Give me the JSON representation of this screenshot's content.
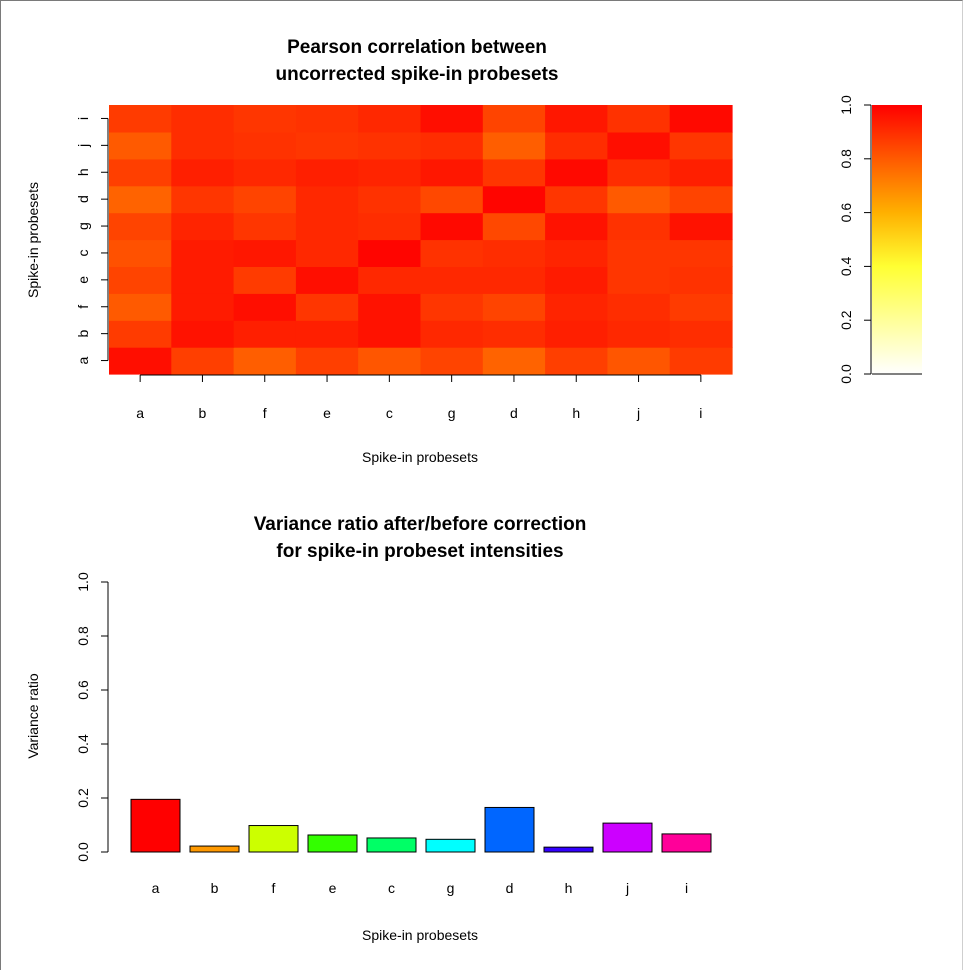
{
  "chart_data": [
    {
      "type": "heatmap",
      "title": [
        "Pearson correlation between",
        "uncorrected spike-in probesets"
      ],
      "xlabel": "Spike-in probesets",
      "ylabel": "Spike-in probesets",
      "x_categories": [
        "a",
        "b",
        "f",
        "e",
        "c",
        "g",
        "d",
        "h",
        "j",
        "i"
      ],
      "y_categories": [
        "a",
        "b",
        "f",
        "e",
        "c",
        "g",
        "d",
        "h",
        "j",
        "i"
      ],
      "values": [
        [
          0.97,
          0.86,
          0.79,
          0.86,
          0.81,
          0.85,
          0.78,
          0.86,
          0.81,
          0.87
        ],
        [
          0.87,
          0.96,
          0.93,
          0.93,
          0.96,
          0.91,
          0.9,
          0.93,
          0.91,
          0.9
        ],
        [
          0.8,
          0.94,
          0.97,
          0.88,
          0.96,
          0.88,
          0.85,
          0.92,
          0.9,
          0.87
        ],
        [
          0.85,
          0.94,
          0.87,
          0.97,
          0.91,
          0.91,
          0.91,
          0.94,
          0.88,
          0.89
        ],
        [
          0.82,
          0.94,
          0.95,
          0.91,
          0.99,
          0.89,
          0.9,
          0.92,
          0.88,
          0.88
        ],
        [
          0.85,
          0.92,
          0.88,
          0.91,
          0.9,
          0.98,
          0.84,
          0.96,
          0.89,
          0.96
        ],
        [
          0.78,
          0.88,
          0.85,
          0.91,
          0.89,
          0.84,
          0.99,
          0.88,
          0.8,
          0.85
        ],
        [
          0.86,
          0.93,
          0.91,
          0.93,
          0.92,
          0.95,
          0.88,
          0.98,
          0.9,
          0.93
        ],
        [
          0.8,
          0.9,
          0.89,
          0.88,
          0.89,
          0.9,
          0.79,
          0.9,
          0.97,
          0.88
        ],
        [
          0.87,
          0.9,
          0.88,
          0.89,
          0.91,
          0.97,
          0.85,
          0.95,
          0.89,
          0.98
        ]
      ],
      "colorbar": {
        "ticks": [
          "0.0",
          "0.2",
          "0.4",
          "0.6",
          "0.8",
          "1.0"
        ],
        "range": [
          0,
          1
        ]
      }
    },
    {
      "type": "bar",
      "title": [
        "Variance ratio after/before correction",
        "for spike-in probeset intensities"
      ],
      "xlabel": "Spike-in probesets",
      "ylabel": "Variance ratio",
      "categories": [
        "a",
        "b",
        "f",
        "e",
        "c",
        "g",
        "d",
        "h",
        "j",
        "i"
      ],
      "values": [
        0.195,
        0.022,
        0.098,
        0.063,
        0.052,
        0.047,
        0.165,
        0.018,
        0.107,
        0.067
      ],
      "colors": [
        "#ff0000",
        "#ff9900",
        "#ccff00",
        "#33ff00",
        "#00ff66",
        "#00ffff",
        "#0066ff",
        "#3300ff",
        "#cc00ff",
        "#ff0099"
      ],
      "ylim": [
        0,
        1
      ],
      "yticks": [
        "0.0",
        "0.2",
        "0.4",
        "0.6",
        "0.8",
        "1.0"
      ]
    }
  ]
}
